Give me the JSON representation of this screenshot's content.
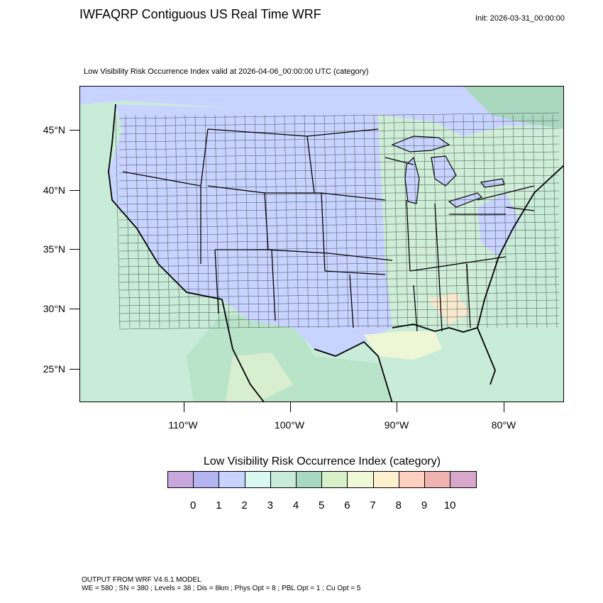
{
  "header": {
    "title": "IWFAQRP Contiguous US Real Time WRF",
    "init": "Init: 2026-03-31_00:00:00",
    "subtitle": "Low Visibility Risk Occurrence Index valid at 2026-04-06_00:00:00 UTC   (category)"
  },
  "map": {
    "projection": "lambert-conformal",
    "lat_labels": [
      "45°N",
      "40°N",
      "35°N",
      "30°N",
      "25°N"
    ],
    "lon_labels": [
      "110°W",
      "100°W",
      "90°W",
      "80°W"
    ],
    "land_color": "#c8d4ff",
    "background_color": "#c9ecd9",
    "border_color": "#000000"
  },
  "legend": {
    "title": "Low Visibility Risk Occurrence Index  (category)",
    "tick_labels": [
      "0",
      "1",
      "2",
      "3",
      "4",
      "5",
      "6",
      "7",
      "8",
      "9",
      "10"
    ],
    "colors": [
      "#c8a8dc",
      "#b4b4f0",
      "#c8d4ff",
      "#d8f8f0",
      "#c8ecd8",
      "#a8d8c0",
      "#d8f0c8",
      "#f0f8d8",
      "#fff0d0",
      "#ffd0c0",
      "#f0b4b0",
      "#d8a8cc"
    ]
  },
  "footer": {
    "line1": "OUTPUT FROM WRF V4.6.1 MODEL",
    "line2": "WE = 580 ; SN = 380 ; Levels = 38 ; Dis = 8km ; Phys Opt = 8 ; PBL Opt = 1 ; Cu Opt = 5"
  }
}
